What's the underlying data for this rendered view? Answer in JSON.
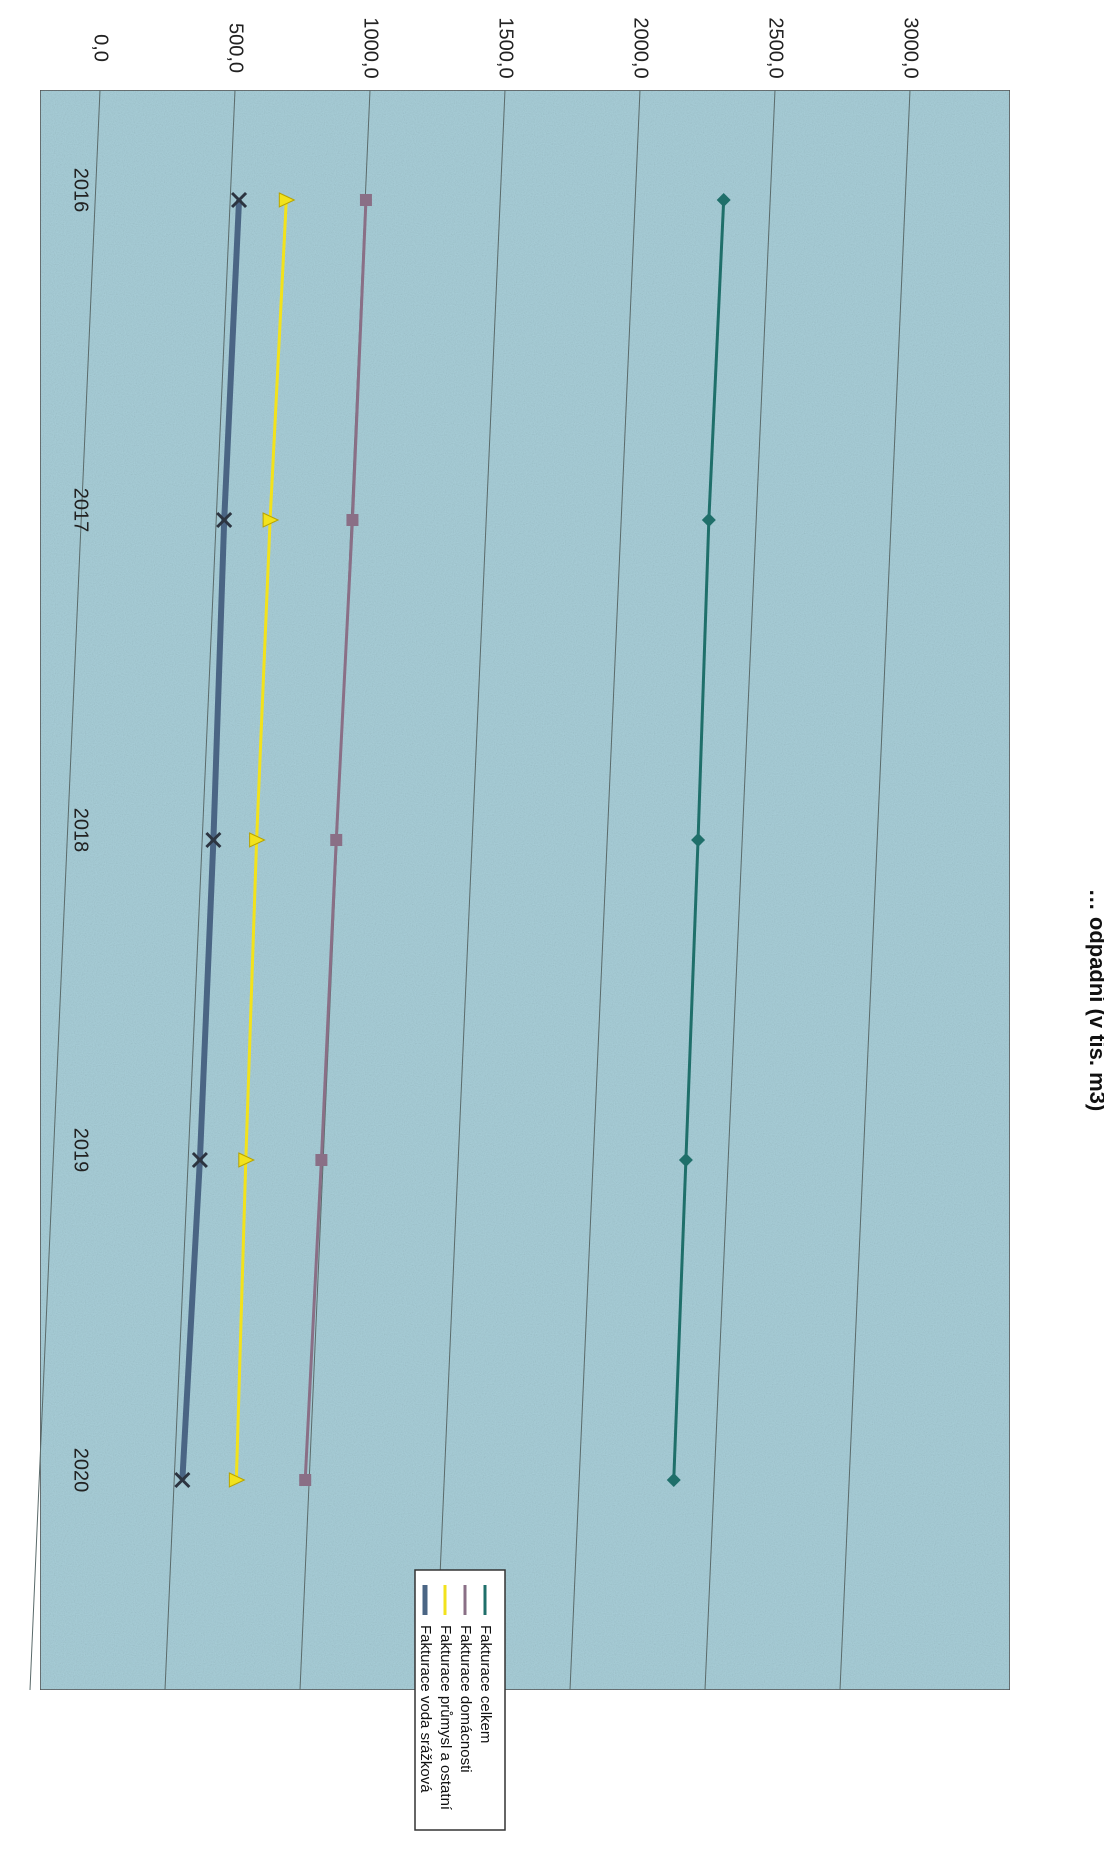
{
  "chart_data": {
    "type": "line",
    "title": "… odpadní (v tis. m3)",
    "categories": [
      "2016",
      "2017",
      "2018",
      "2019",
      "2020"
    ],
    "ylim": [
      0,
      3000
    ],
    "yticks": [
      "0,0",
      "500,0",
      "1000,0",
      "1500,0",
      "2000,0",
      "2500,0",
      "3000,0"
    ],
    "grid": true,
    "orientation": "rotated 90° clockwise",
    "legend_position": "right",
    "series": [
      {
        "name": "Fakturace celkem",
        "color": "#1f6f6a",
        "marker": "diamond",
        "values": [
          2310,
          2255,
          2215,
          2170,
          2125
        ]
      },
      {
        "name": "Fakturace domácnosti",
        "color": "#8a6f86",
        "marker": "square",
        "values": [
          985,
          935,
          875,
          820,
          760
        ]
      },
      {
        "name": "Fakturace průmysl a ostatní",
        "color": "#f2e21c",
        "marker": "triangle",
        "values": [
          690,
          630,
          580,
          540,
          505
        ]
      },
      {
        "name": "Fakturace voda srážková",
        "color": "#4a6584",
        "marker": "x",
        "values": [
          515,
          460,
          420,
          370,
          305
        ]
      }
    ]
  }
}
